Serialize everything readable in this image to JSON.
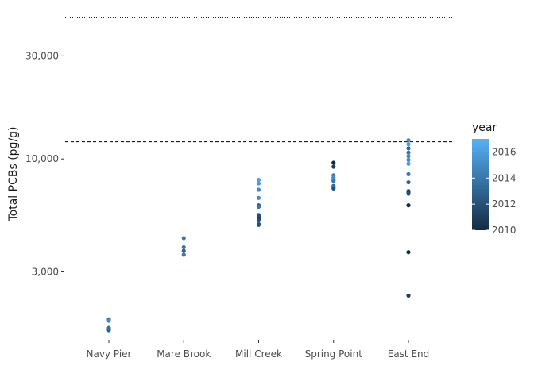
{
  "chart_data": {
    "type": "scatter",
    "title": "",
    "xlabel": "",
    "ylabel": "Total PCBs (pg/g)",
    "y_scale": "log10",
    "ylim": [
      1700,
      55000
    ],
    "categories": [
      "Navy Pier",
      "Mare Brook",
      "Mill Creek",
      "Spring Point",
      "East End"
    ],
    "y_ticks": [
      {
        "value": 3000,
        "label": "3,000"
      },
      {
        "value": 10000,
        "label": "10,000"
      },
      {
        "value": 30000,
        "label": "30,000"
      }
    ],
    "reference_lines": [
      {
        "value": 12000,
        "style": "dashed"
      },
      {
        "value": 45000,
        "style": "dotted"
      }
    ],
    "grid": false,
    "color_scale": {
      "variable": "year",
      "min": 2010,
      "max": 2017,
      "low_color": "#132B43",
      "high_color": "#56B1F7",
      "ticks": [
        2010,
        2012,
        2014,
        2016
      ]
    },
    "legend": {
      "title": "year",
      "placement": "right"
    },
    "points": [
      {
        "category": "Navy Pier",
        "y": 1810,
        "year": 2014
      },
      {
        "category": "Navy Pier",
        "y": 1790,
        "year": 2014
      },
      {
        "category": "Navy Pier",
        "y": 1780,
        "year": 2015
      },
      {
        "category": "Navy Pier",
        "y": 1650,
        "year": 2013
      },
      {
        "category": "Navy Pier",
        "y": 1630,
        "year": 2014
      },
      {
        "category": "Navy Pier",
        "y": 1610,
        "year": 2013
      },
      {
        "category": "Mare Brook",
        "y": 4300,
        "year": 2014
      },
      {
        "category": "Mare Brook",
        "y": 3900,
        "year": 2014
      },
      {
        "category": "Mare Brook",
        "y": 3750,
        "year": 2013
      },
      {
        "category": "Mare Brook",
        "y": 3600,
        "year": 2014
      },
      {
        "category": "Mill Creek",
        "y": 8000,
        "year": 2016
      },
      {
        "category": "Mill Creek",
        "y": 7700,
        "year": 2016
      },
      {
        "category": "Mill Creek",
        "y": 7200,
        "year": 2015
      },
      {
        "category": "Mill Creek",
        "y": 6600,
        "year": 2015
      },
      {
        "category": "Mill Creek",
        "y": 6100,
        "year": 2013
      },
      {
        "category": "Mill Creek",
        "y": 6000,
        "year": 2014
      },
      {
        "category": "Mill Creek",
        "y": 5500,
        "year": 2012
      },
      {
        "category": "Mill Creek",
        "y": 5400,
        "year": 2012
      },
      {
        "category": "Mill Creek",
        "y": 5300,
        "year": 2011
      },
      {
        "category": "Mill Creek",
        "y": 5200,
        "year": 2012
      },
      {
        "category": "Mill Creek",
        "y": 5000,
        "year": 2013
      },
      {
        "category": "Mill Creek",
        "y": 4950,
        "year": 2012
      },
      {
        "category": "Spring Point",
        "y": 9600,
        "year": 2010
      },
      {
        "category": "Spring Point",
        "y": 9200,
        "year": 2011
      },
      {
        "category": "Spring Point",
        "y": 8400,
        "year": 2014
      },
      {
        "category": "Spring Point",
        "y": 8200,
        "year": 2015
      },
      {
        "category": "Spring Point",
        "y": 8000,
        "year": 2015
      },
      {
        "category": "Spring Point",
        "y": 7900,
        "year": 2014
      },
      {
        "category": "Spring Point",
        "y": 7500,
        "year": 2013
      },
      {
        "category": "Spring Point",
        "y": 7400,
        "year": 2014
      },
      {
        "category": "Spring Point",
        "y": 7300,
        "year": 2012
      },
      {
        "category": "East End",
        "y": 12200,
        "year": 2015
      },
      {
        "category": "East End",
        "y": 11700,
        "year": 2016
      },
      {
        "category": "East End",
        "y": 11200,
        "year": 2013
      },
      {
        "category": "East End",
        "y": 10700,
        "year": 2014
      },
      {
        "category": "East End",
        "y": 10300,
        "year": 2015
      },
      {
        "category": "East End",
        "y": 9900,
        "year": 2015
      },
      {
        "category": "East End",
        "y": 9500,
        "year": 2016
      },
      {
        "category": "East End",
        "y": 8500,
        "year": 2014
      },
      {
        "category": "East End",
        "y": 7800,
        "year": 2013
      },
      {
        "category": "East End",
        "y": 7100,
        "year": 2012
      },
      {
        "category": "East End",
        "y": 7000,
        "year": 2011
      },
      {
        "category": "East End",
        "y": 6900,
        "year": 2012
      },
      {
        "category": "East End",
        "y": 6100,
        "year": 2010
      },
      {
        "category": "East End",
        "y": 3700,
        "year": 2010
      },
      {
        "category": "East End",
        "y": 2330,
        "year": 2011
      }
    ]
  }
}
